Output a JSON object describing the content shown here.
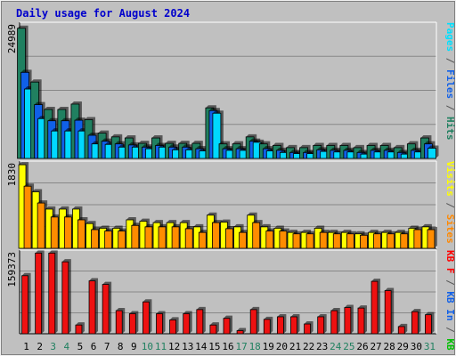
{
  "chart_data": {
    "type": "bar",
    "title": "Daily usage for August 2024",
    "categories": [
      "1",
      "2",
      "3",
      "4",
      "5",
      "6",
      "7",
      "8",
      "9",
      "10",
      "11",
      "12",
      "13",
      "14",
      "15",
      "16",
      "17",
      "18",
      "19",
      "20",
      "21",
      "22",
      "23",
      "24",
      "25",
      "26",
      "27",
      "28",
      "29",
      "30",
      "31"
    ],
    "weekend_days": [
      "3",
      "4",
      "10",
      "11",
      "17",
      "18",
      "24",
      "25",
      "31"
    ],
    "panels": [
      {
        "id": "hfp",
        "max_label": "24989",
        "ymax": 24989,
        "right_label_parts": [
          {
            "text": "Pages",
            "color": "#00e0ff"
          },
          {
            "text": " / ",
            "color": "#555555"
          },
          {
            "text": "Files",
            "color": "#1060e8"
          },
          {
            "text": " / ",
            "color": "#555555"
          },
          {
            "text": "Hits",
            "color": "#208060"
          }
        ],
        "series": [
          {
            "name": "Hits",
            "color": "#208060",
            "values": [
              24200,
              14200,
              9100,
              9100,
              10100,
              7200,
              4700,
              4000,
              3800,
              2800,
              3800,
              2800,
              2800,
              2800,
              9400,
              2700,
              2700,
              4000,
              2700,
              2400,
              2000,
              2000,
              2400,
              2400,
              2400,
              2000,
              2400,
              2400,
              2000,
              2700,
              3800
            ]
          },
          {
            "name": "Files",
            "color": "#1060e8",
            "values": [
              16000,
              10000,
              7000,
              7000,
              7100,
              4300,
              3200,
              2700,
              2500,
              2100,
              2400,
              2100,
              2100,
              1800,
              8900,
              1800,
              1800,
              3200,
              1800,
              1500,
              1100,
              1100,
              1600,
              1500,
              1500,
              1100,
              1500,
              1500,
              1100,
              1500,
              2700
            ]
          },
          {
            "name": "Pages",
            "color": "#00d8ff",
            "values": [
              12900,
              7400,
              5100,
              5100,
              5100,
              2700,
              2600,
              2100,
              2100,
              1800,
              2100,
              1600,
              1600,
              1400,
              8400,
              1500,
              1500,
              3000,
              1400,
              1100,
              900,
              900,
              1300,
              1200,
              1200,
              800,
              1200,
              1200,
              800,
              1200,
              1900
            ]
          }
        ]
      },
      {
        "id": "vs",
        "max_label": "1830",
        "ymax": 1830,
        "right_label_parts": [
          {
            "text": "Visits",
            "color": "#ffff00"
          },
          {
            "text": " / ",
            "color": "#555555"
          },
          {
            "text": "Sites",
            "color": "#ff8800"
          }
        ],
        "series": [
          {
            "name": "Visits",
            "color": "#ffff00",
            "values": [
              1790,
              1210,
              840,
              840,
              840,
              530,
              430,
              430,
              610,
              580,
              550,
              550,
              550,
              460,
              710,
              560,
              460,
              710,
              460,
              430,
              340,
              340,
              430,
              340,
              340,
              310,
              340,
              340,
              340,
              430,
              460
            ]
          },
          {
            "name": "Sites",
            "color": "#ff8c00",
            "values": [
              1330,
              970,
              670,
              670,
              610,
              400,
              370,
              370,
              490,
              460,
              460,
              460,
              420,
              340,
              550,
              420,
              340,
              550,
              370,
              370,
              310,
              310,
              340,
              310,
              310,
              280,
              310,
              310,
              310,
              400,
              400
            ]
          }
        ]
      },
      {
        "id": "kb",
        "max_label": "159373",
        "ymax": 159373,
        "right_label_parts": [
          {
            "text": "KB F",
            "color": "#ff0000"
          },
          {
            "text": " / ",
            "color": "#555555"
          },
          {
            "text": "KB In",
            "color": "#1060e8"
          },
          {
            "text": " / ",
            "color": "#555555"
          },
          {
            "text": "KB Out",
            "color": "#00c000"
          }
        ],
        "series": [
          {
            "name": "KB F",
            "color": "#ee1111",
            "values": [
              113000,
              157000,
              157000,
              140000,
              17000,
              103000,
              96000,
              45000,
              39000,
              62000,
              39000,
              27000,
              39000,
              47000,
              17000,
              30000,
              6000,
              47000,
              28000,
              33000,
              33000,
              19000,
              33000,
              45000,
              51000,
              50000,
              102000,
              84000,
              14000,
              43000,
              37000
            ]
          }
        ]
      }
    ]
  }
}
